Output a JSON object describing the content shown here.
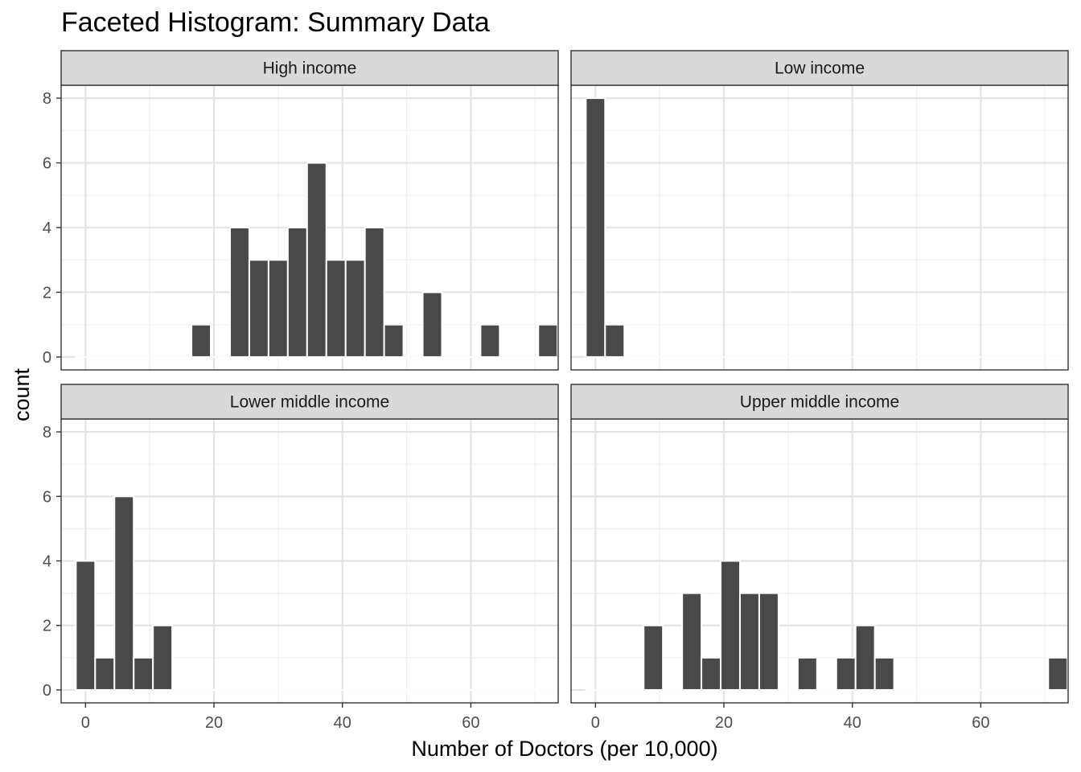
{
  "chart_data": {
    "type": "bar",
    "title": "Faceted Histogram: Summary Data",
    "xlabel": "Number of Doctors (per 10,000)",
    "ylabel": "count",
    "xlim": [
      -3.8,
      73.6
    ],
    "ylim": [
      -0.4,
      8.4
    ],
    "x_ticks": [
      0,
      20,
      40,
      60
    ],
    "y_ticks": [
      0,
      2,
      4,
      6,
      8
    ],
    "bin_width": 3,
    "bin_centers": [
      0,
      3,
      6,
      9,
      12,
      15,
      18,
      21,
      24,
      27,
      30,
      33,
      36,
      39,
      42,
      45,
      48,
      51,
      54,
      57,
      60,
      63,
      66,
      69,
      72
    ],
    "grid": true,
    "theme": "bw",
    "bar_color": "#494949",
    "bar_outline": "#ffffff",
    "facets": [
      {
        "name": "High income",
        "counts": [
          0,
          0,
          0,
          0,
          0,
          0,
          1,
          0,
          4,
          3,
          3,
          4,
          6,
          3,
          3,
          4,
          1,
          0,
          2,
          0,
          0,
          1,
          0,
          0,
          1
        ]
      },
      {
        "name": "Low income",
        "counts": [
          8,
          1,
          0,
          0,
          0,
          0,
          0,
          0,
          0,
          0,
          0,
          0,
          0,
          0,
          0,
          0,
          0,
          0,
          0,
          0,
          0,
          0,
          0,
          0,
          0
        ]
      },
      {
        "name": "Lower middle income",
        "counts": [
          4,
          1,
          6,
          1,
          2,
          0,
          0,
          0,
          0,
          0,
          0,
          0,
          0,
          0,
          0,
          0,
          0,
          0,
          0,
          0,
          0,
          0,
          0,
          0,
          0
        ]
      },
      {
        "name": "Upper middle income",
        "counts": [
          0,
          0,
          0,
          2,
          0,
          3,
          1,
          4,
          3,
          3,
          0,
          1,
          0,
          1,
          2,
          1,
          0,
          0,
          0,
          0,
          0,
          0,
          0,
          0,
          1
        ]
      }
    ]
  }
}
